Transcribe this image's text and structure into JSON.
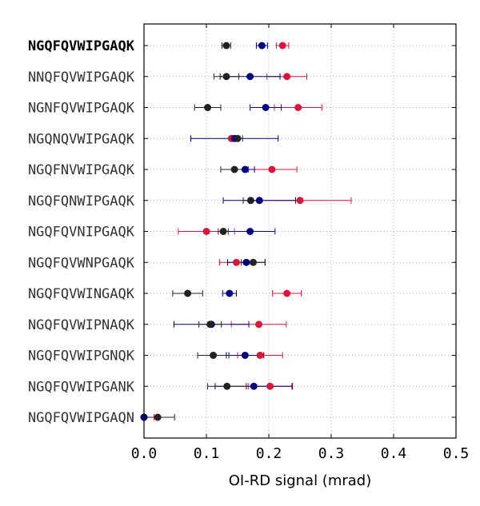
{
  "chart_data": {
    "type": "scatter",
    "title": "",
    "xlabel": "OI-RD signal (mrad)",
    "ylabel": "",
    "xlim": [
      0.0,
      0.5
    ],
    "xticks": [
      "0.0",
      "0.1",
      "0.2",
      "0.3",
      "0.4",
      "0.5"
    ],
    "grid": true,
    "categories": [
      "NGQFQVWIPGAQK",
      "NNQFQVWIPGAQK",
      "NGNFQVWIPGAQK",
      "NGQNQVWIPGAQK",
      "NGQFNVWIPGAQK",
      "NGQFQNWIPGAQK",
      "NGQFQVNIPGAQK",
      "NGQFQVWNPGAQK",
      "NGQFQVWINGAQK",
      "NGQFQVWIPNAQK",
      "NGQFQVWIPGNQK",
      "NGQFQVWIPGANK",
      "NGQFQVWIPGAQN"
    ],
    "bold_category": "NGQFQVWIPGAQK",
    "series": [
      {
        "color": "#dc143c",
        "values": [
          0.222,
          0.229,
          0.247,
          0.14,
          0.205,
          0.25,
          0.1,
          0.148,
          0.229,
          0.184,
          0.186,
          0.202,
          0.0
        ],
        "errors": [
          0.01,
          0.032,
          0.038,
          0.002,
          0.04,
          0.082,
          0.045,
          0.027,
          0.023,
          0.044,
          0.036,
          0.035,
          0.016
        ]
      },
      {
        "color": "#000080",
        "values": [
          0.189,
          0.17,
          0.195,
          0.145,
          0.162,
          0.185,
          0.17,
          0.164,
          0.137,
          0.108,
          0.162,
          0.176,
          0.0
        ],
        "errors": [
          0.009,
          0.048,
          0.025,
          0.07,
          0.015,
          0.058,
          0.04,
          0.03,
          0.011,
          0.06,
          0.03,
          0.062,
          0.002
        ]
      },
      {
        "color": "#222222",
        "values": [
          0.132,
          0.132,
          0.102,
          0.15,
          0.145,
          0.171,
          0.127,
          0.175,
          0.07,
          0.106,
          0.111,
          0.133,
          0.022
        ],
        "errors": [
          0.007,
          0.02,
          0.021,
          0.008,
          0.022,
          0.012,
          0.008,
          0.019,
          0.024,
          0.018,
          0.025,
          0.031,
          0.027
        ]
      }
    ]
  }
}
